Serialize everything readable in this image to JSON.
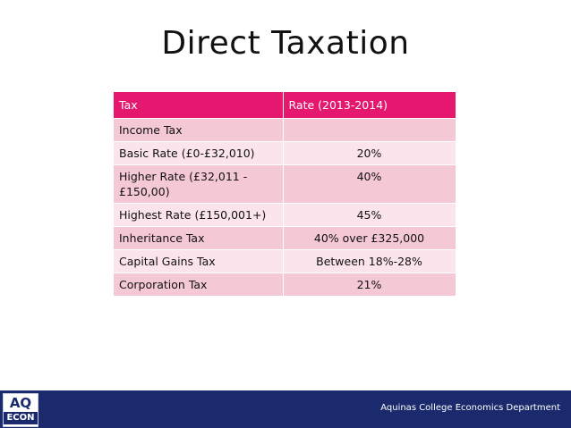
{
  "slide": {
    "title": "Direct Taxation"
  },
  "table": {
    "headers": [
      "Tax",
      "Rate (2013-2014)"
    ],
    "rows": [
      {
        "tax": "Income Tax",
        "rate": ""
      },
      {
        "tax": "Basic Rate (£0-£32,010)",
        "rate": "20%"
      },
      {
        "tax": "Higher Rate (£32,011 - £150,00)",
        "rate": "40%"
      },
      {
        "tax": "Highest Rate (£150,001+)",
        "rate": "45%"
      },
      {
        "tax": "Inheritance Tax",
        "rate": "40% over £325,000"
      },
      {
        "tax": "Capital Gains Tax",
        "rate": "Between 18%-28%"
      },
      {
        "tax": "Corporation Tax",
        "rate": "21%"
      }
    ]
  },
  "footer": {
    "logo_top": "AQ",
    "logo_bottom": "ECON",
    "department": "Aquinas College Economics Department"
  },
  "colors": {
    "header": "#e5176f",
    "row_dark": "#f5c8d6",
    "row_light": "#fbe4eb",
    "footer_bar": "#1a2a6c"
  }
}
